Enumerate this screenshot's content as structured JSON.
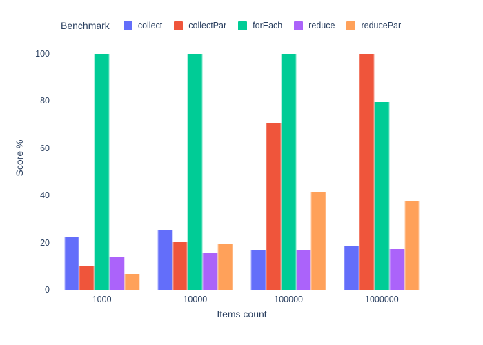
{
  "figure": {
    "background_color": "#ffffff",
    "text_color": "#2a3f5f"
  },
  "chart_data": {
    "type": "bar",
    "legend_title": "Benchmark",
    "legend_position": "top",
    "xlabel": "Items count",
    "ylabel": "Score %",
    "categories": [
      "1000",
      "10000",
      "100000",
      "1000000"
    ],
    "series": [
      {
        "name": "collect",
        "color": "#636EFA",
        "values": [
          22.3,
          25.5,
          16.7,
          18.5
        ]
      },
      {
        "name": "collectPar",
        "color": "#EF553B",
        "values": [
          10.3,
          20.2,
          70.9,
          100
        ]
      },
      {
        "name": "forEach",
        "color": "#00CC96",
        "values": [
          100,
          100,
          100,
          79.4
        ]
      },
      {
        "name": "reduce",
        "color": "#AB63FA",
        "values": [
          13.8,
          15.4,
          17.1,
          17.4
        ]
      },
      {
        "name": "reducePar",
        "color": "#FFA15A",
        "values": [
          6.7,
          19.5,
          41.6,
          37.5
        ]
      }
    ],
    "ylim": [
      0,
      100
    ],
    "yticks": [
      0,
      20,
      40,
      60,
      80,
      100
    ],
    "grid": false
  }
}
